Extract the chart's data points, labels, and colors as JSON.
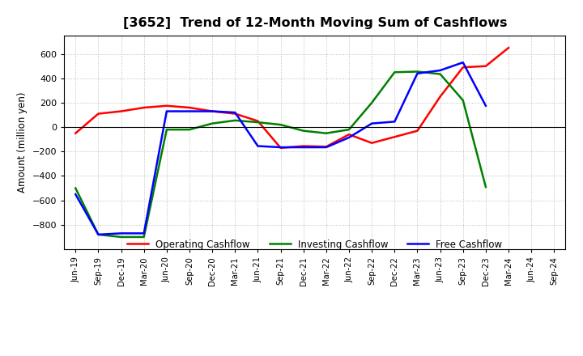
{
  "title": "[3652]  Trend of 12-Month Moving Sum of Cashflows",
  "ylabel": "Amount (million yen)",
  "x_labels": [
    "Jun-19",
    "Sep-19",
    "Dec-19",
    "Mar-20",
    "Jun-20",
    "Sep-20",
    "Dec-20",
    "Mar-21",
    "Jun-21",
    "Sep-21",
    "Dec-21",
    "Mar-22",
    "Jun-22",
    "Sep-22",
    "Dec-22",
    "Mar-23",
    "Jun-23",
    "Sep-23",
    "Dec-23",
    "Mar-24",
    "Jun-24",
    "Sep-24"
  ],
  "operating": [
    -50,
    110,
    130,
    160,
    175,
    160,
    130,
    110,
    50,
    -170,
    -155,
    -160,
    -60,
    -130,
    -80,
    -30,
    250,
    490,
    500,
    650,
    null,
    null
  ],
  "investing": [
    -500,
    -880,
    -900,
    -900,
    -20,
    -20,
    30,
    55,
    40,
    20,
    -30,
    -50,
    -20,
    200,
    450,
    455,
    435,
    220,
    -490,
    null,
    null,
    null
  ],
  "free": [
    -550,
    -880,
    -870,
    -870,
    130,
    130,
    130,
    120,
    -155,
    -165,
    -165,
    -165,
    -85,
    30,
    45,
    440,
    465,
    530,
    175,
    null,
    null,
    null
  ],
  "operating_color": "#ff0000",
  "investing_color": "#008000",
  "free_color": "#0000ff",
  "ylim": [
    -1000,
    750
  ],
  "yticks": [
    -800,
    -600,
    -400,
    -200,
    0,
    200,
    400,
    600
  ],
  "background_color": "#ffffff",
  "grid_color": "#b0b0b0"
}
